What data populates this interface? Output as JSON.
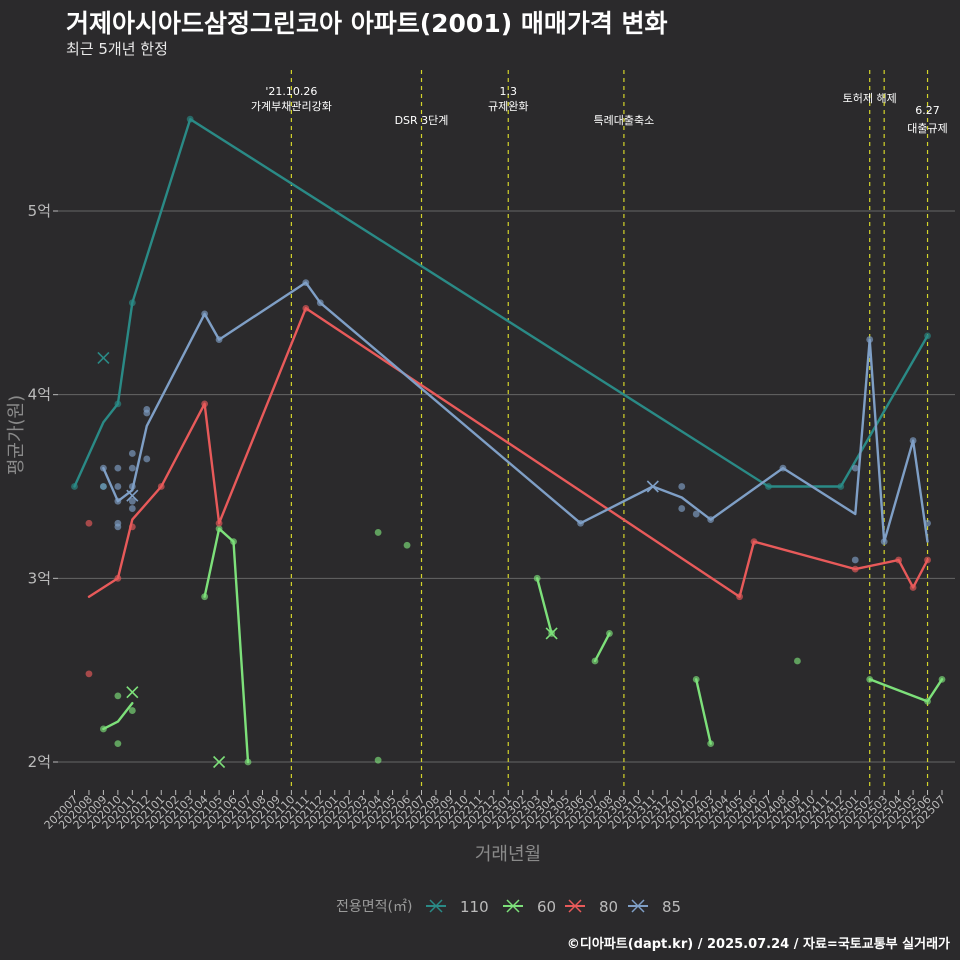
{
  "header": {
    "title": "거제아시아드삼정그린코아 아파트(2001) 매매가격 변화",
    "subtitle": "최근 5개년 한정"
  },
  "footer": {
    "caption": "©디아파트(dapt.kr) / 2025.07.24 / 자료=국토교통부 실거래가"
  },
  "colors": {
    "background": "#2b2a2c",
    "grid": "#666666",
    "event_line": "#d4d42a",
    "series_110": "#2a8a86",
    "series_60": "#7de07a",
    "series_80": "#e85a5a",
    "series_85": "#7f9fc6"
  },
  "chart_data": {
    "type": "line",
    "title": "거제아시아드삼정그린코아 아파트(2001) 매매가격 변화",
    "subtitle": "최근 5개년 한정",
    "xlabel": "거래년월",
    "ylabel": "평균가(원)",
    "categories": [
      "202007",
      "202008",
      "202009",
      "202010",
      "202011",
      "202012",
      "202101",
      "202102",
      "202103",
      "202104",
      "202105",
      "202106",
      "202107",
      "202108",
      "202109",
      "202110",
      "202111",
      "202112",
      "202201",
      "202202",
      "202203",
      "202204",
      "202205",
      "202206",
      "202207",
      "202208",
      "202209",
      "202210",
      "202211",
      "202212",
      "202301",
      "202302",
      "202303",
      "202304",
      "202305",
      "202306",
      "202307",
      "202308",
      "202309",
      "202310",
      "202311",
      "202312",
      "202401",
      "202402",
      "202403",
      "202404",
      "202405",
      "202406",
      "202407",
      "202408",
      "202409",
      "202410",
      "202411",
      "202412",
      "202501",
      "202502",
      "202503",
      "202504",
      "202505",
      "202506",
      "202507"
    ],
    "y_ticks": [
      2,
      3,
      4,
      5
    ],
    "y_tick_labels": [
      "2억",
      "3억",
      "4억",
      "5억"
    ],
    "ylim": [
      1.8,
      5.8
    ],
    "grid": true,
    "legend": {
      "title": "전용면적(㎡)",
      "position": "bottom",
      "entries": [
        "110",
        "60",
        "80",
        "85"
      ]
    },
    "events": [
      {
        "x": "202110",
        "label": [
          "'21.10.26",
          "가계부채관리강화"
        ]
      },
      {
        "x": "202207",
        "label": [
          "DSR 3단계"
        ]
      },
      {
        "x": "202301",
        "label": [
          "1.3",
          "규제완화"
        ]
      },
      {
        "x": "202309",
        "label": [
          "특례대출축소"
        ]
      },
      {
        "x": "202502",
        "label": [
          "토허제 해제"
        ]
      },
      {
        "x": "202503",
        "label": []
      },
      {
        "x": "202506",
        "label": [
          "6.27",
          "대출규제"
        ]
      }
    ],
    "series": [
      {
        "name": "110",
        "line": [
          [
            "202007",
            3.5
          ],
          [
            "202009",
            3.85
          ],
          [
            "202010",
            3.95
          ],
          [
            "202011",
            4.5
          ],
          [
            "202103",
            5.5
          ],
          [
            "202407",
            3.5
          ],
          [
            "202412",
            3.5
          ],
          [
            "202506",
            4.32
          ]
        ],
        "points": [
          [
            "202007",
            3.5
          ],
          [
            "202009",
            3.5
          ],
          [
            "202010",
            3.95
          ],
          [
            "202011",
            4.5
          ],
          [
            "202103",
            5.5
          ],
          [
            "202407",
            3.5
          ],
          [
            "202412",
            3.5
          ],
          [
            "202506",
            4.32
          ]
        ],
        "cancelled": [
          [
            "202009",
            4.2
          ]
        ]
      },
      {
        "name": "60",
        "line_segments": [
          [
            [
              "202009",
              2.18
            ],
            [
              "202010",
              2.22
            ],
            [
              "202011",
              2.32
            ]
          ],
          [
            [
              "202104",
              2.9
            ],
            [
              "202105",
              3.27
            ],
            [
              "202106",
              3.2
            ],
            [
              "202107",
              2.0
            ]
          ],
          [
            [
              "202303",
              3.0
            ],
            [
              "202304",
              2.7
            ]
          ],
          [
            [
              "202307",
              2.55
            ],
            [
              "202308",
              2.7
            ]
          ],
          [
            [
              "202402",
              2.45
            ],
            [
              "202403",
              2.1
            ]
          ],
          [
            [
              "202502",
              2.45
            ],
            [
              "202506",
              2.33
            ],
            [
              "202507",
              2.45
            ]
          ]
        ],
        "points": [
          [
            "202009",
            2.18
          ],
          [
            "202010",
            2.36
          ],
          [
            "202010",
            2.1
          ],
          [
            "202011",
            2.28
          ],
          [
            "202104",
            2.9
          ],
          [
            "202105",
            3.27
          ],
          [
            "202106",
            3.2
          ],
          [
            "202107",
            2.0
          ],
          [
            "202204",
            3.25
          ],
          [
            "202204",
            2.01
          ],
          [
            "202206",
            3.18
          ],
          [
            "202303",
            3.0
          ],
          [
            "202304",
            2.7
          ],
          [
            "202307",
            2.55
          ],
          [
            "202308",
            2.7
          ],
          [
            "202402",
            2.45
          ],
          [
            "202403",
            2.1
          ],
          [
            "202409",
            2.55
          ],
          [
            "202502",
            2.45
          ],
          [
            "202506",
            2.33
          ],
          [
            "202507",
            2.45
          ]
        ],
        "cancelled": [
          [
            "202011",
            2.38
          ],
          [
            "202105",
            2.0
          ],
          [
            "202304",
            2.7
          ]
        ]
      },
      {
        "name": "80",
        "line": [
          [
            "202008",
            2.9
          ],
          [
            "202010",
            3.0
          ],
          [
            "202011",
            3.32
          ],
          [
            "202101",
            3.5
          ],
          [
            "202104",
            3.95
          ],
          [
            "202105",
            3.3
          ],
          [
            "202111",
            4.47
          ],
          [
            "202405",
            2.9
          ],
          [
            "202406",
            3.2
          ],
          [
            "202501",
            3.05
          ],
          [
            "202504",
            3.1
          ],
          [
            "202505",
            2.95
          ],
          [
            "202506",
            3.1
          ]
        ],
        "points": [
          [
            "202008",
            3.3
          ],
          [
            "202008",
            2.48
          ],
          [
            "202010",
            3.0
          ],
          [
            "202011",
            3.28
          ],
          [
            "202101",
            3.5
          ],
          [
            "202104",
            3.95
          ],
          [
            "202105",
            3.3
          ],
          [
            "202111",
            4.47
          ],
          [
            "202405",
            2.9
          ],
          [
            "202406",
            3.2
          ],
          [
            "202501",
            3.05
          ],
          [
            "202504",
            3.1
          ],
          [
            "202505",
            2.95
          ],
          [
            "202506",
            3.1
          ]
        ],
        "cancelled": []
      },
      {
        "name": "85",
        "line": [
          [
            "202009",
            3.6
          ],
          [
            "202010",
            3.42
          ],
          [
            "202011",
            3.48
          ],
          [
            "202012",
            3.83
          ],
          [
            "202104",
            4.44
          ],
          [
            "202105",
            4.3
          ],
          [
            "202111",
            4.61
          ],
          [
            "202112",
            4.5
          ],
          [
            "202306",
            3.3
          ],
          [
            "202311",
            3.5
          ],
          [
            "202401",
            3.44
          ],
          [
            "202403",
            3.32
          ],
          [
            "202408",
            3.6
          ],
          [
            "202501",
            3.35
          ],
          [
            "202502",
            4.3
          ],
          [
            "202503",
            3.2
          ],
          [
            "202505",
            3.75
          ],
          [
            "202506",
            3.2
          ]
        ],
        "points": [
          [
            "202009",
            3.6
          ],
          [
            "202009",
            3.5
          ],
          [
            "202010",
            3.6
          ],
          [
            "202010",
            3.5
          ],
          [
            "202010",
            3.42
          ],
          [
            "202010",
            3.3
          ],
          [
            "202010",
            3.28
          ],
          [
            "202011",
            3.68
          ],
          [
            "202011",
            3.6
          ],
          [
            "202011",
            3.5
          ],
          [
            "202011",
            3.42
          ],
          [
            "202011",
            3.38
          ],
          [
            "202012",
            3.92
          ],
          [
            "202012",
            3.9
          ],
          [
            "202012",
            3.65
          ],
          [
            "202104",
            4.44
          ],
          [
            "202105",
            4.3
          ],
          [
            "202111",
            4.61
          ],
          [
            "202112",
            4.5
          ],
          [
            "202306",
            3.3
          ],
          [
            "202401",
            3.5
          ],
          [
            "202401",
            3.38
          ],
          [
            "202402",
            3.35
          ],
          [
            "202403",
            3.32
          ],
          [
            "202408",
            3.6
          ],
          [
            "202501",
            3.6
          ],
          [
            "202501",
            3.1
          ],
          [
            "202502",
            4.3
          ],
          [
            "202503",
            3.2
          ],
          [
            "202505",
            3.75
          ],
          [
            "202506",
            3.3
          ]
        ],
        "cancelled": [
          [
            "202011",
            3.45
          ],
          [
            "202311",
            3.5
          ]
        ]
      }
    ]
  }
}
